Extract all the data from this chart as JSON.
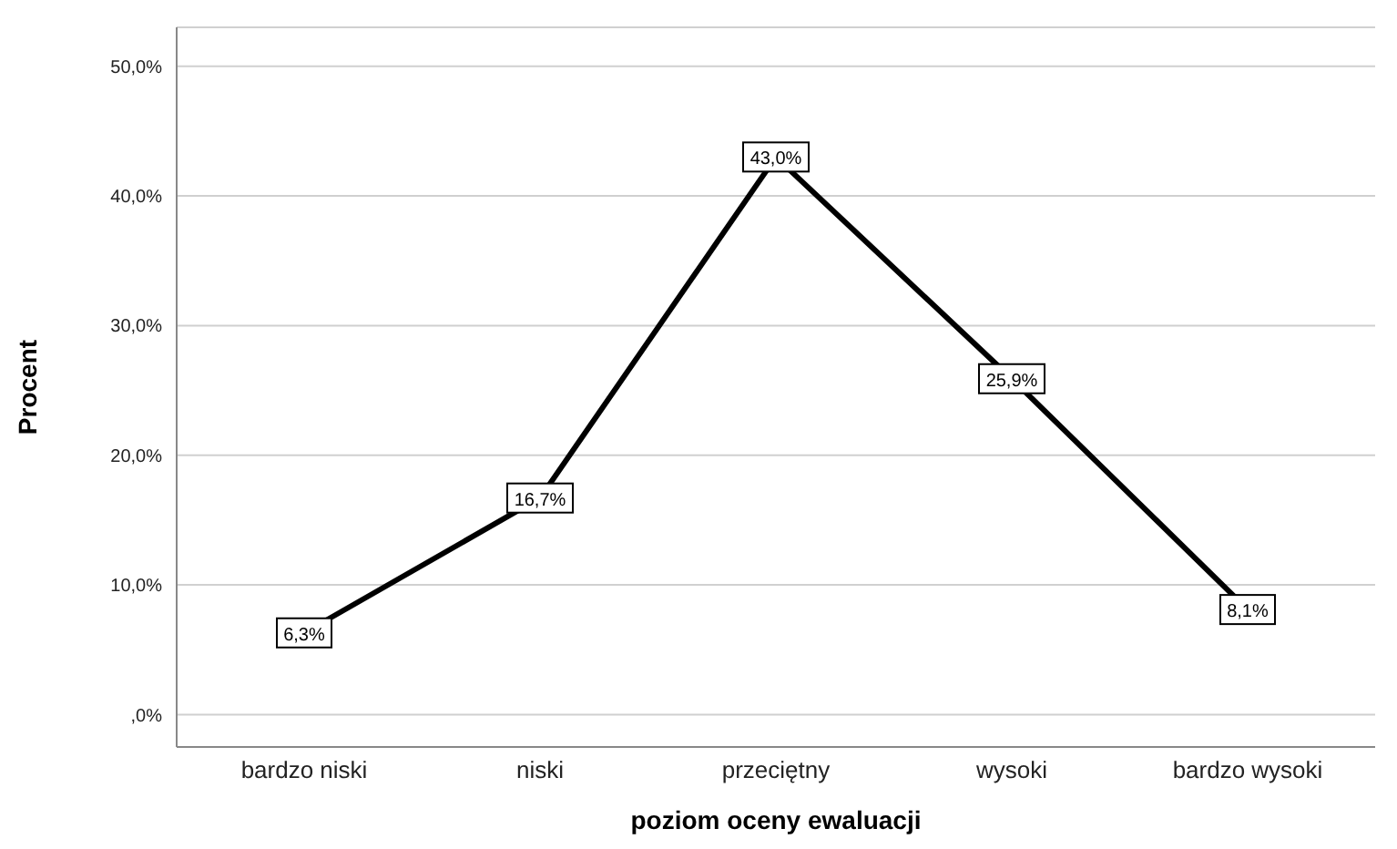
{
  "chart_data": {
    "type": "line",
    "xlabel": "poziom oceny ewaluacji",
    "ylabel": "Procent",
    "categories": [
      "bardzo niski",
      "niski",
      "przeciętny",
      "wysoki",
      "bardzo wysoki"
    ],
    "values": [
      6.3,
      16.7,
      43.0,
      25.9,
      8.1
    ],
    "value_labels": [
      "6,3%",
      "16,7%",
      "43,0%",
      "25,9%",
      "8,1%"
    ],
    "color": "#000000",
    "marker": "square",
    "line_style": "solid",
    "grid": "y",
    "legend": false,
    "ylim": [
      -2.5,
      53
    ],
    "yticks": [
      {
        "value": 0,
        "label": ",0%"
      },
      {
        "value": 10,
        "label": "10,0%"
      },
      {
        "value": 20,
        "label": "20,0%"
      },
      {
        "value": 30,
        "label": "30,0%"
      },
      {
        "value": 40,
        "label": "40,0%"
      },
      {
        "value": 50,
        "label": "50,0%"
      }
    ]
  }
}
